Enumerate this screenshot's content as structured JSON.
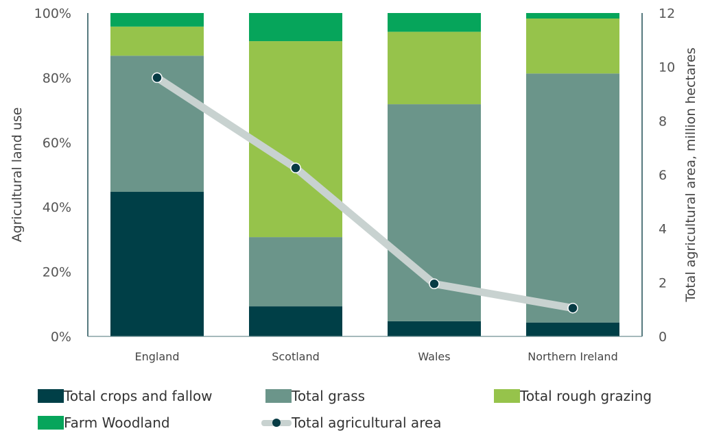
{
  "chart_data": {
    "type": "bar",
    "stacked": true,
    "categories": [
      "England",
      "Scotland",
      "Wales",
      "Northern Ireland"
    ],
    "series": [
      {
        "name": "Total crops and fallow",
        "color": "#003f47",
        "values": [
          44.7,
          9.3,
          4.7,
          4.3
        ]
      },
      {
        "name": "Total grass",
        "color": "#6b958a",
        "values": [
          42.1,
          21.4,
          67.1,
          77.0
        ]
      },
      {
        "name": "Total rough grazing",
        "color": "#96c34b",
        "values": [
          9.0,
          60.6,
          22.4,
          17.0
        ]
      },
      {
        "name": "Farm Woodland",
        "color": "#06a55b",
        "values": [
          4.2,
          8.7,
          5.8,
          1.7
        ]
      }
    ],
    "line_series": {
      "name": "Total agricultural area",
      "values": [
        9.6,
        6.25,
        1.95,
        1.05
      ],
      "line_color": "#c8d2d0",
      "marker_color": "#073b44"
    },
    "y_left": {
      "label": "Agricultural land use",
      "ylim": [
        0,
        100
      ],
      "ticks": [
        "0%",
        "20%",
        "40%",
        "60%",
        "80%",
        "100%"
      ]
    },
    "y_right": {
      "label": "Total agricultural area, million hectares",
      "ylim": [
        0,
        12
      ],
      "ticks": [
        "0",
        "2",
        "4",
        "6",
        "8",
        "10",
        "12"
      ]
    },
    "legend_position": "bottom"
  }
}
